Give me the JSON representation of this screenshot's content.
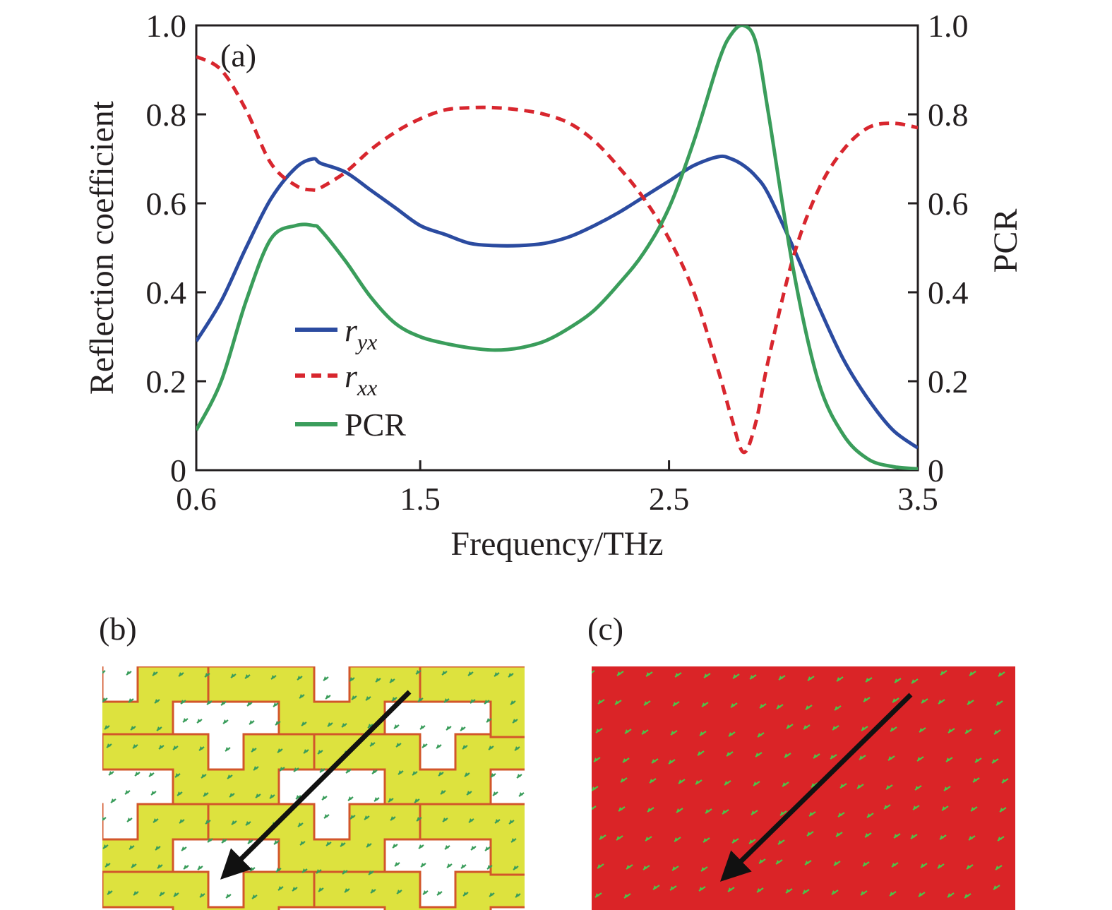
{
  "panels": {
    "a": {
      "label": "(a)"
    },
    "b": {
      "label": "(b)"
    },
    "c": {
      "label": "(c)"
    }
  },
  "chart_data": {
    "type": "line",
    "title": "",
    "xlabel": "Frequency/THz",
    "ylabel": "Reflection coefficient",
    "ylabel_right": "PCR",
    "xlim": [
      0.6,
      3.5
    ],
    "ylim": [
      0,
      1.0
    ],
    "ylim_right": [
      0,
      1.0
    ],
    "x_ticks": [
      "0.6",
      "1.5",
      "2.5",
      "3.5"
    ],
    "x_tick_values": [
      0.6,
      1.5,
      2.5,
      3.5
    ],
    "y_ticks": [
      "0",
      "0.2",
      "0.4",
      "0.6",
      "0.8",
      "1.0"
    ],
    "y_tick_values": [
      0,
      0.2,
      0.4,
      0.6,
      0.8,
      1.0
    ],
    "legend_position": "lower-left",
    "grid": false,
    "x": [
      0.6,
      0.7,
      0.8,
      0.9,
      1.0,
      1.07,
      1.1,
      1.2,
      1.3,
      1.4,
      1.5,
      1.6,
      1.7,
      1.8,
      1.9,
      2.0,
      2.1,
      2.2,
      2.3,
      2.4,
      2.5,
      2.6,
      2.7,
      2.75,
      2.8,
      2.85,
      2.9,
      3.0,
      3.1,
      3.2,
      3.3,
      3.4,
      3.5
    ],
    "series": [
      {
        "name": "r",
        "subscript": "yx",
        "color": "#2b4ba0",
        "dash": "solid",
        "values": [
          0.29,
          0.38,
          0.5,
          0.61,
          0.68,
          0.7,
          0.69,
          0.67,
          0.63,
          0.59,
          0.55,
          0.53,
          0.51,
          0.505,
          0.505,
          0.51,
          0.525,
          0.55,
          0.58,
          0.615,
          0.65,
          0.685,
          0.705,
          0.7,
          0.685,
          0.66,
          0.62,
          0.5,
          0.37,
          0.25,
          0.16,
          0.09,
          0.05
        ]
      },
      {
        "name": "r",
        "subscript": "xx",
        "color": "#d8262e",
        "dash": "dashed",
        "values": [
          0.93,
          0.9,
          0.81,
          0.69,
          0.64,
          0.63,
          0.635,
          0.67,
          0.72,
          0.76,
          0.79,
          0.81,
          0.815,
          0.815,
          0.81,
          0.8,
          0.78,
          0.74,
          0.68,
          0.61,
          0.52,
          0.4,
          0.22,
          0.12,
          0.04,
          0.11,
          0.25,
          0.48,
          0.63,
          0.72,
          0.77,
          0.78,
          0.77
        ]
      },
      {
        "name": "PCR",
        "subscript": "",
        "color": "#3a9d5b",
        "dash": "solid",
        "values": [
          0.09,
          0.2,
          0.38,
          0.52,
          0.55,
          0.55,
          0.54,
          0.47,
          0.39,
          0.33,
          0.3,
          0.285,
          0.275,
          0.27,
          0.275,
          0.29,
          0.32,
          0.36,
          0.42,
          0.49,
          0.59,
          0.74,
          0.92,
          0.98,
          1.0,
          0.96,
          0.8,
          0.45,
          0.2,
          0.08,
          0.025,
          0.008,
          0.003
        ]
      }
    ]
  },
  "field_maps": {
    "b": {
      "background": "#ffffff",
      "metal_color": "#dde23e",
      "edge_color": "#d2562a",
      "arrow_color": "#3a9d5b"
    },
    "c": {
      "background": "#da2427",
      "arrow_color": "#4cc44a"
    }
  }
}
